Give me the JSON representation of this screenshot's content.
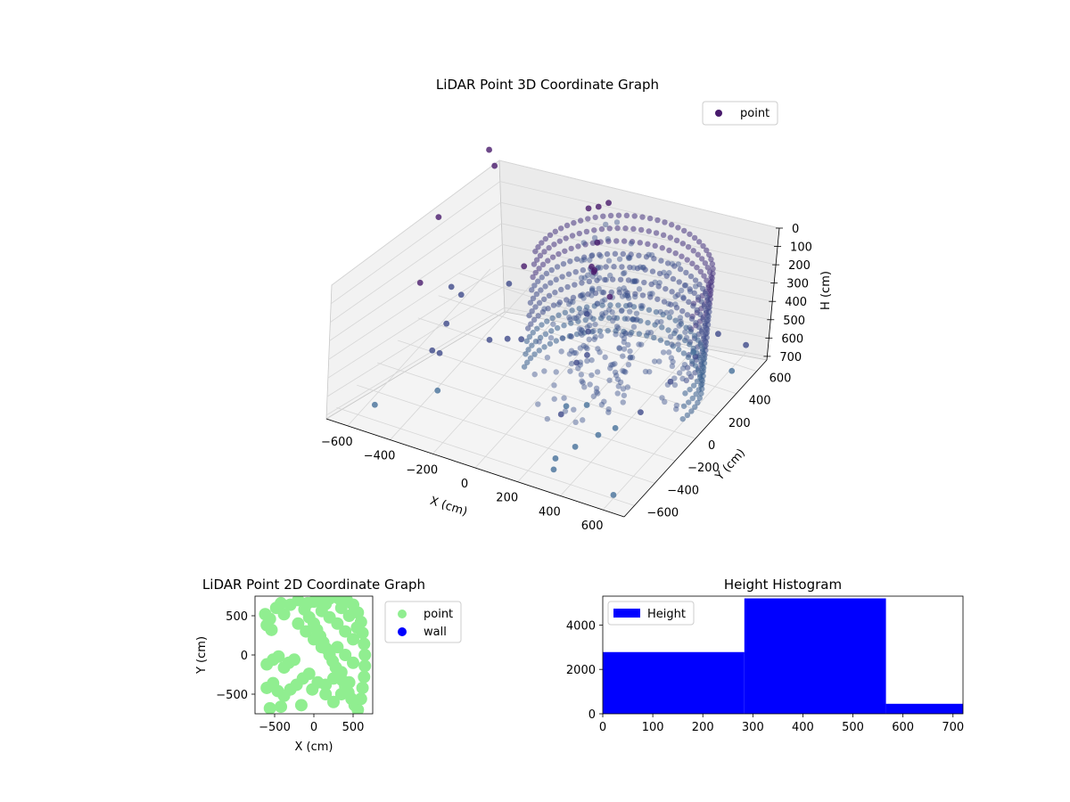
{
  "chart_data": [
    {
      "id": "scatter3d",
      "type": "scatter",
      "projection": "3d",
      "title": "LiDAR Point 3D Coordinate Graph",
      "xlabel": "X (cm)",
      "ylabel": "Y (cm)",
      "zlabel": "H (cm)",
      "xlim": [
        -700,
        700
      ],
      "ylim": [
        -700,
        700
      ],
      "zlim": [
        0,
        720
      ],
      "z_inverted": true,
      "xticks": [
        -600,
        -400,
        -200,
        0,
        200,
        400,
        600
      ],
      "yticks": [
        -600,
        -400,
        -200,
        0,
        200,
        400,
        600
      ],
      "zticks": [
        0,
        100,
        200,
        300,
        400,
        500,
        600,
        700
      ],
      "grid": true,
      "legend": {
        "position": "top-right",
        "entries": [
          "point"
        ]
      },
      "colors": {
        "point": "#481a6c",
        "mid": "#3e4a89",
        "far": "#46709a",
        "pane": "#f2f2f2",
        "grid": "#d0d0d0"
      },
      "series": [
        {
          "name": "point",
          "points": [
            [
              -640,
              660,
              60
            ],
            [
              -600,
              640,
              120
            ],
            [
              -650,
              200,
              150
            ],
            [
              -560,
              -150,
              260
            ],
            [
              -520,
              100,
              420
            ],
            [
              -480,
              120,
              460
            ],
            [
              -460,
              -60,
              500
            ],
            [
              -420,
              -200,
              560
            ],
            [
              -380,
              -380,
              420
            ],
            [
              -300,
              200,
              380
            ],
            [
              -260,
              250,
              300
            ],
            [
              -240,
              -100,
              480
            ],
            [
              -200,
              0,
              520
            ],
            [
              -170,
              80,
              560
            ],
            [
              -120,
              560,
              120
            ],
            [
              -100,
              620,
              140
            ],
            [
              -60,
              630,
              110
            ],
            [
              -40,
              500,
              240
            ],
            [
              -10,
              420,
              340
            ],
            [
              30,
              330,
              260
            ],
            [
              40,
              270,
              200
            ],
            [
              60,
              220,
              420
            ],
            [
              90,
              180,
              480
            ],
            [
              120,
              120,
              560
            ],
            [
              140,
              260,
              320
            ],
            [
              150,
              -60,
              480
            ],
            [
              180,
              -200,
              620
            ],
            [
              210,
              -320,
              580
            ],
            [
              240,
              -120,
              640
            ],
            [
              270,
              -480,
              700
            ],
            [
              300,
              -560,
              700
            ],
            [
              330,
              -420,
              650
            ],
            [
              380,
              -300,
              640
            ],
            [
              430,
              -240,
              620
            ],
            [
              480,
              -100,
              600
            ],
            [
              520,
              100,
              540
            ],
            [
              560,
              250,
              480
            ],
            [
              600,
              380,
              420
            ],
            [
              640,
              600,
              600
            ],
            [
              600,
              -600,
              700
            ],
            [
              -380,
              -280,
              700
            ],
            [
              -560,
              -520,
              700
            ],
            [
              420,
              560,
              700
            ],
            [
              620,
              520,
              700
            ]
          ]
        }
      ]
    },
    {
      "id": "scatter2d",
      "type": "scatter",
      "title": "LiDAR Point 2D Coordinate Graph",
      "xlabel": "X (cm)",
      "ylabel": "Y (cm)",
      "xlim": [
        -750,
        750
      ],
      "ylim": [
        -750,
        750
      ],
      "xticks": [
        -500,
        0,
        500
      ],
      "yticks": [
        -500,
        0,
        500
      ],
      "legend": {
        "position": "outside-right",
        "entries": [
          "point",
          "wall"
        ]
      },
      "colors": {
        "point": "#90ee90",
        "wall": "#0000ff"
      },
      "series": [
        {
          "name": "point",
          "points": [
            [
              -620,
              520
            ],
            [
              -560,
              460
            ],
            [
              -480,
              600
            ],
            [
              -420,
              660
            ],
            [
              -380,
              520
            ],
            [
              -300,
              640
            ],
            [
              -600,
              380
            ],
            [
              -540,
              320
            ],
            [
              -600,
              -120
            ],
            [
              -520,
              -60
            ],
            [
              -450,
              -20
            ],
            [
              -380,
              -160
            ],
            [
              -320,
              -100
            ],
            [
              -250,
              -60
            ],
            [
              -600,
              -420
            ],
            [
              -520,
              -360
            ],
            [
              -460,
              -460
            ],
            [
              -380,
              -520
            ],
            [
              -300,
              -440
            ],
            [
              -220,
              -380
            ],
            [
              -140,
              -300
            ],
            [
              -60,
              -240
            ],
            [
              -20,
              -440
            ],
            [
              -160,
              -640
            ],
            [
              -420,
              -660
            ],
            [
              -560,
              -680
            ],
            [
              -200,
              700
            ],
            [
              -120,
              580
            ],
            [
              -60,
              480
            ],
            [
              0,
              400
            ],
            [
              40,
              320
            ],
            [
              80,
              240
            ],
            [
              120,
              160
            ],
            [
              160,
              80
            ],
            [
              200,
              0
            ],
            [
              240,
              -80
            ],
            [
              280,
              -160
            ],
            [
              320,
              -240
            ],
            [
              360,
              -320
            ],
            [
              400,
              -400
            ],
            [
              440,
              -480
            ],
            [
              480,
              -560
            ],
            [
              520,
              -640
            ],
            [
              560,
              -700
            ],
            [
              600,
              -560
            ],
            [
              620,
              -420
            ],
            [
              640,
              -280
            ],
            [
              650,
              -140
            ],
            [
              650,
              0
            ],
            [
              640,
              140
            ],
            [
              620,
              280
            ],
            [
              600,
              420
            ],
            [
              560,
              540
            ],
            [
              500,
              640
            ],
            [
              420,
              700
            ],
            [
              320,
              720
            ],
            [
              200,
              720
            ],
            [
              80,
              700
            ],
            [
              0,
              680
            ],
            [
              -80,
              660
            ],
            [
              100,
              560
            ],
            [
              200,
              480
            ],
            [
              300,
              400
            ],
            [
              400,
              300
            ],
            [
              500,
              200
            ],
            [
              300,
              100
            ],
            [
              400,
              0
            ],
            [
              500,
              -100
            ],
            [
              350,
              -220
            ],
            [
              250,
              -300
            ],
            [
              150,
              -380
            ],
            [
              100,
              100
            ],
            [
              0,
              200
            ],
            [
              -100,
              300
            ],
            [
              -200,
              400
            ],
            [
              450,
              500
            ],
            [
              350,
              600
            ],
            [
              150,
              650
            ],
            [
              550,
              350
            ],
            [
              450,
              -350
            ],
            [
              350,
              -500
            ],
            [
              250,
              -600
            ],
            [
              150,
              -500
            ],
            [
              50,
              -350
            ]
          ]
        },
        {
          "name": "wall",
          "points": []
        }
      ]
    },
    {
      "id": "histogram",
      "type": "bar",
      "title": "Height Histogram",
      "xlim": [
        0,
        720
      ],
      "ylim": [
        0,
        5300
      ],
      "xticks": [
        0,
        100,
        200,
        300,
        400,
        500,
        600,
        700
      ],
      "yticks": [
        0,
        2000,
        4000
      ],
      "legend": {
        "position": "top-left",
        "entries": [
          "Height"
        ]
      },
      "colors": {
        "bar": "#0000ff"
      },
      "series": [
        {
          "name": "Height",
          "bins": [
            {
              "from": 0,
              "to": 283,
              "count": 2780
            },
            {
              "from": 283,
              "to": 566,
              "count": 5200
            },
            {
              "from": 566,
              "to": 720,
              "count": 450
            }
          ]
        }
      ]
    }
  ]
}
